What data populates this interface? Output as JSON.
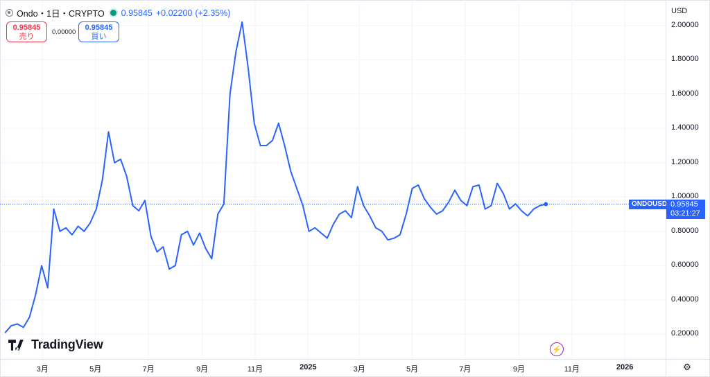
{
  "header": {
    "title": "Ondo・1日・CRYPTO",
    "price": "0.95845",
    "change": "+0.02200",
    "change_pct": "(+2.35%)"
  },
  "trade": {
    "sell_price": "0.95845",
    "sell_label": "売り",
    "spread": "0.00000",
    "buy_price": "0.95845",
    "buy_label": "買い"
  },
  "currency": "USD",
  "last": {
    "symbol": "ONDOUSD",
    "price": "0.95845",
    "countdown": "03:21:27"
  },
  "brand": "TradingView",
  "colors": {
    "line": "#2962ff",
    "accent": "#2962ff",
    "sell": "#f23645",
    "live": "#089981"
  },
  "icons": [
    "symbol-icon",
    "live-dot-icon",
    "tradingview-logo-icon",
    "lightning-icon",
    "settings-icon"
  ],
  "chart_data": {
    "type": "line",
    "series": [
      {
        "name": "ONDOUSD",
        "x": [
          "2024-01-18",
          "2024-01-25",
          "2024-02-01",
          "2024-02-08",
          "2024-02-15",
          "2024-02-22",
          "2024-02-29",
          "2024-03-07",
          "2024-03-14",
          "2024-03-21",
          "2024-03-28",
          "2024-04-04",
          "2024-04-11",
          "2024-04-18",
          "2024-04-25",
          "2024-05-02",
          "2024-05-09",
          "2024-05-16",
          "2024-05-23",
          "2024-05-30",
          "2024-06-06",
          "2024-06-13",
          "2024-06-20",
          "2024-06-27",
          "2024-07-04",
          "2024-07-11",
          "2024-07-18",
          "2024-07-25",
          "2024-08-01",
          "2024-08-08",
          "2024-08-15",
          "2024-08-22",
          "2024-08-29",
          "2024-09-05",
          "2024-09-12",
          "2024-09-19",
          "2024-09-26",
          "2024-10-03",
          "2024-10-10",
          "2024-10-17",
          "2024-10-24",
          "2024-10-31",
          "2024-11-07",
          "2024-11-14",
          "2024-11-21",
          "2024-11-28",
          "2024-12-05",
          "2024-12-12",
          "2024-12-19",
          "2024-12-26",
          "2025-01-02",
          "2025-01-09",
          "2025-01-16",
          "2025-01-23",
          "2025-01-30",
          "2025-02-06",
          "2025-02-13",
          "2025-02-20",
          "2025-02-27",
          "2025-03-06",
          "2025-03-13",
          "2025-03-20",
          "2025-03-27",
          "2025-04-03",
          "2025-04-10",
          "2025-04-17",
          "2025-04-24",
          "2025-05-01",
          "2025-05-08",
          "2025-05-15",
          "2025-05-22",
          "2025-05-29",
          "2025-06-05",
          "2025-06-12",
          "2025-06-19",
          "2025-06-26",
          "2025-07-03",
          "2025-07-10",
          "2025-07-17",
          "2025-07-24",
          "2025-07-31",
          "2025-08-07",
          "2025-08-14",
          "2025-08-21",
          "2025-08-28",
          "2025-09-04",
          "2025-09-11",
          "2025-09-18",
          "2025-09-25",
          "2025-10-02"
        ],
        "values": [
          0.21,
          0.25,
          0.26,
          0.24,
          0.3,
          0.43,
          0.6,
          0.47,
          0.93,
          0.8,
          0.82,
          0.78,
          0.83,
          0.8,
          0.85,
          0.93,
          1.1,
          1.38,
          1.2,
          1.22,
          1.12,
          0.95,
          0.92,
          0.98,
          0.77,
          0.68,
          0.71,
          0.58,
          0.6,
          0.78,
          0.8,
          0.72,
          0.79,
          0.7,
          0.64,
          0.9,
          0.96,
          1.6,
          1.85,
          2.02,
          1.75,
          1.43,
          1.3,
          1.3,
          1.33,
          1.43,
          1.3,
          1.15,
          1.05,
          0.95,
          0.8,
          0.82,
          0.79,
          0.76,
          0.84,
          0.9,
          0.92,
          0.88,
          1.06,
          0.95,
          0.89,
          0.82,
          0.8,
          0.75,
          0.76,
          0.78,
          0.9,
          1.05,
          1.07,
          0.99,
          0.94,
          0.9,
          0.92,
          0.97,
          1.04,
          0.98,
          0.95,
          1.06,
          1.07,
          0.93,
          0.95,
          1.08,
          1.02,
          0.93,
          0.96,
          0.92,
          0.89,
          0.93,
          0.95,
          0.95845
        ]
      }
    ],
    "y_ticks": [
      "0.20000",
      "0.40000",
      "0.60000",
      "0.80000",
      "1.00000",
      "1.20000",
      "1.40000",
      "1.60000",
      "1.80000",
      "2.00000"
    ],
    "ylim": [
      0.08,
      2.1
    ],
    "x_ticks": [
      {
        "label": "3月",
        "date": "2024-03-01"
      },
      {
        "label": "5月",
        "date": "2024-05-01"
      },
      {
        "label": "7月",
        "date": "2024-07-01"
      },
      {
        "label": "9月",
        "date": "2024-09-01"
      },
      {
        "label": "11月",
        "date": "2024-11-01"
      },
      {
        "label": "2025",
        "date": "2025-01-01",
        "bold": true
      },
      {
        "label": "3月",
        "date": "2025-03-01"
      },
      {
        "label": "5月",
        "date": "2025-05-01"
      },
      {
        "label": "7月",
        "date": "2025-07-01"
      },
      {
        "label": "9月",
        "date": "2025-09-01"
      },
      {
        "label": "11月",
        "date": "2025-11-01"
      },
      {
        "label": "2026",
        "date": "2026-01-01",
        "bold": true
      }
    ],
    "xlim": [
      "2024-01-12",
      "2026-02-17"
    ],
    "grid": true
  }
}
